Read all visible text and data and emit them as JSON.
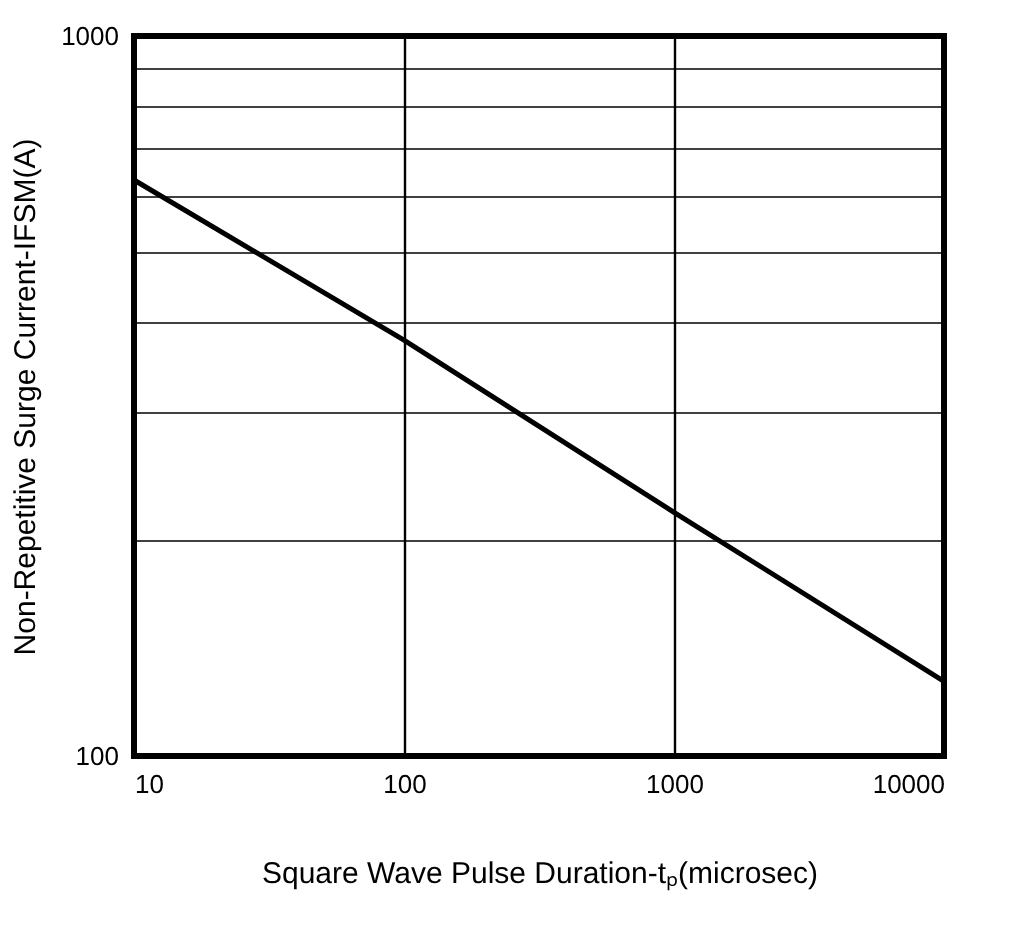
{
  "chart_data": {
    "type": "line",
    "xlabel": "Square Wave Pulse Duration-tₚ(microsec)",
    "ylabel": "Non-Repetitive Surge Current-IFSM(A)",
    "x": [
      10,
      100,
      1000,
      10000
    ],
    "series": [
      {
        "color": "#000000",
        "values": [
          631,
          378,
          218,
          127
        ]
      }
    ],
    "log": "xy",
    "xlim": [
      10,
      10000
    ],
    "ylim": [
      100,
      1000
    ],
    "xticks": [
      10,
      100,
      1000,
      10000
    ],
    "yticks": [
      100,
      {
        "value": 200,
        "label": null
      },
      {
        "value": 300,
        "label": null
      },
      {
        "value": 400,
        "label": null
      },
      {
        "value": 500,
        "label": null
      },
      {
        "value": 600,
        "label": null
      },
      {
        "value": 700,
        "label": null
      },
      {
        "value": 800,
        "label": null
      },
      {
        "value": 900,
        "label": null
      },
      1000
    ],
    "grid": true,
    "marker": "none",
    "line_style": "solid"
  }
}
